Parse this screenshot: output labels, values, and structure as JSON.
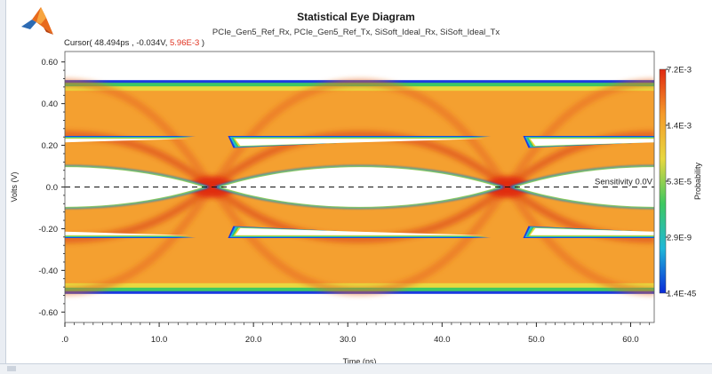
{
  "header": {
    "title": "Statistical Eye Diagram",
    "subtitle": "PCIe_Gen5_Ref_Rx, PCIe_Gen5_Ref_Tx, SiSoft_Ideal_Rx, SiSoft_Ideal_Tx",
    "cursor_prefix": "Cursor( 48.494ps , -0.034V, ",
    "cursor_value": "5.96E-3",
    "cursor_suffix": " )"
  },
  "colors": {
    "cursor_value": "#e0301e",
    "eye_background": "#f4a030",
    "eye_opening": "#ffffff",
    "high_probability": "#e02810",
    "low_probability": "#0a2ad8"
  },
  "chart_data": {
    "type": "heatmap",
    "title": "Statistical Eye Diagram",
    "xlabel": "Time (ps)",
    "ylabel": "Volts (V)",
    "xlim": [
      0,
      62.5
    ],
    "ylim": [
      -0.65,
      0.65
    ],
    "x_ticks": [
      0,
      10,
      20,
      30,
      40,
      50,
      60
    ],
    "x_tick_labels": [
      ".0",
      "10.0",
      "20.0",
      "30.0",
      "40.0",
      "50.0",
      "60.0"
    ],
    "y_ticks": [
      0.6,
      0.4,
      0.2,
      0.0,
      -0.2,
      -0.4,
      -0.6
    ],
    "y_tick_labels": [
      "0.60",
      "0.40",
      "0.20",
      "0.0",
      "-0.20",
      "-0.40",
      "-0.60"
    ],
    "crossing_times_ps": [
      15.6,
      46.9
    ],
    "signal_levels_v": [
      0.5,
      0.25,
      -0.25,
      -0.5
    ],
    "sensitivity_v": 0.0,
    "sensitivity_label": "Sensitivity 0.0V",
    "colorbar": {
      "label": "Probability",
      "tick_labels": [
        "7.2E-3",
        "1.4E-3",
        "5.3E-5",
        "2.9E-9",
        "1.4E-45"
      ],
      "colors": [
        "#e02810",
        "#f59a2a",
        "#e8d840",
        "#3ec860",
        "#20b8d8",
        "#0a2ad8"
      ]
    },
    "grid": false
  }
}
